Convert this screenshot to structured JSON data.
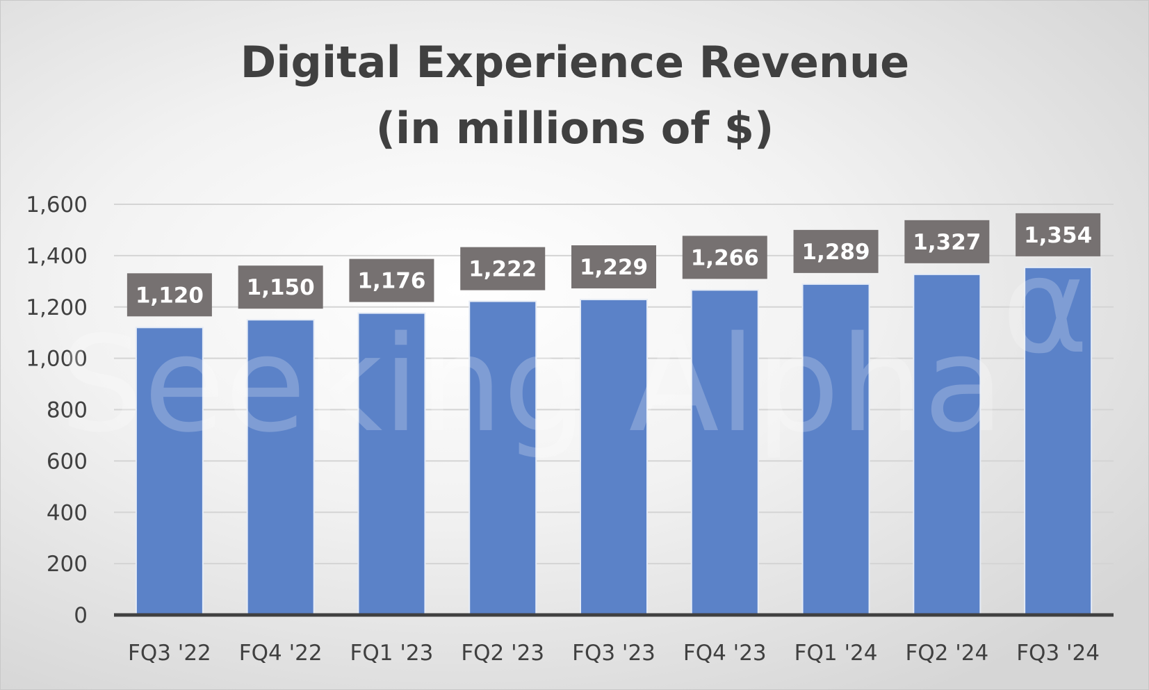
{
  "chart_data": {
    "type": "bar",
    "title": "Digital Experience Revenue",
    "subtitle": "(in millions of $)",
    "categories": [
      "FQ3 '22",
      "FQ4 '22",
      "FQ1 '23",
      "FQ2 '23",
      "FQ3 '23",
      "FQ4 '23",
      "FQ1 '24",
      "FQ2 '24",
      "FQ3 '24"
    ],
    "values": [
      1120,
      1150,
      1176,
      1222,
      1229,
      1266,
      1289,
      1327,
      1354
    ],
    "data_labels": [
      "1,120",
      "1,150",
      "1,176",
      "1,222",
      "1,229",
      "1,266",
      "1,289",
      "1,327",
      "1,354"
    ],
    "yticks": [
      0,
      200,
      400,
      600,
      800,
      1000,
      1200,
      1400,
      1600
    ],
    "ytick_labels": [
      "0",
      "200",
      "400",
      "600",
      "800",
      "1,000",
      "1,200",
      "1,400",
      "1,600"
    ],
    "ylim": [
      0,
      1600
    ],
    "xlabel": "",
    "ylabel": "",
    "grid": true,
    "legend": "none",
    "colors": {
      "bar": "#5b82c8",
      "bar_border": "#e6ecf6",
      "label_box": "#767171",
      "label_text": "#ffffff",
      "text": "#404040",
      "grid": "#d4d4d4",
      "axis": "#404040"
    }
  },
  "watermark": {
    "text": "Seeking Alpha",
    "symbol": "α"
  }
}
